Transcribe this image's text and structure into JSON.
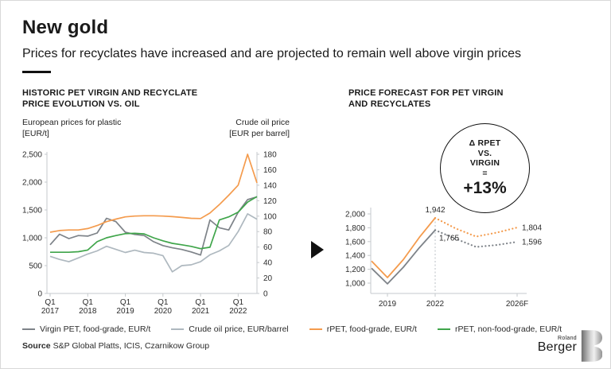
{
  "header": {
    "title": "New gold",
    "subtitle": "Prices for recyclates have increased and are projected to remain well above virgin prices"
  },
  "left_panel": {
    "heading_line1": "HISTORIC PET VIRGIN AND RECYCLATE",
    "heading_line2": "PRICE EVOLUTION VS. OIL",
    "left_axis_title_line1": "European prices for plastic",
    "left_axis_title_line2": "[EUR/t]",
    "right_axis_title_line1": "Crude oil price",
    "right_axis_title_line2": "[EUR per barrel]"
  },
  "right_panel": {
    "heading_line1": "PRICE FORECAST FOR PET VIRGIN",
    "heading_line2": "AND RECYCLATES",
    "badge": {
      "line1": "Δ RPET",
      "line2": "VS.",
      "line3": "VIRGIN",
      "line4": "=",
      "value": "+13%"
    }
  },
  "legend": [
    {
      "id": "virgin-pet",
      "label": "Virgin PET, food-grade, EUR/t",
      "color": "#7E8389"
    },
    {
      "id": "crude-oil",
      "label": "Crude oil price, EUR/barrel",
      "color": "#AEB8BF"
    },
    {
      "id": "rpet-food",
      "label": "rPET, food-grade, EUR/t",
      "color": "#F49B4D"
    },
    {
      "id": "rpet-nonfood",
      "label": "rPET, non-food-grade, EUR/t",
      "color": "#3FA54A"
    }
  ],
  "source": {
    "label": "Source",
    "text": "S&P Global Platts, ICIS, Czarnikow Group"
  },
  "logo": {
    "top": "Roland",
    "bottom": "Berger"
  },
  "chart_data": [
    {
      "type": "line",
      "title": "HISTORIC PET VIRGIN AND RECYCLATE PRICE EVOLUTION VS. OIL",
      "x": [
        "2017Q1",
        "2017Q2",
        "2017Q3",
        "2017Q4",
        "2018Q1",
        "2018Q2",
        "2018Q3",
        "2018Q4",
        "2019Q1",
        "2019Q2",
        "2019Q3",
        "2019Q4",
        "2020Q1",
        "2020Q2",
        "2020Q3",
        "2020Q4",
        "2021Q1",
        "2021Q2",
        "2021Q3",
        "2021Q4",
        "2022Q1",
        "2022Q2",
        "2022Q3"
      ],
      "quarter_tick_label": "Q1",
      "year_ticks": [
        "2017",
        "2018",
        "2019",
        "2020",
        "2021",
        "2022"
      ],
      "left_axis": {
        "label": "European prices for plastic [EUR/t]",
        "range": [
          0,
          2500
        ],
        "ticks": [
          0,
          500,
          1000,
          1500,
          2000,
          2500
        ]
      },
      "right_axis": {
        "label": "Crude oil price [EUR per barrel]",
        "range": [
          0,
          180
        ],
        "ticks": [
          0,
          20,
          40,
          60,
          80,
          100,
          120,
          140,
          160,
          180
        ]
      },
      "grid": false,
      "series": [
        {
          "id": "virgin-pet",
          "name": "Virgin PET, food-grade, EUR/t",
          "axis": "left",
          "color": "#7E8389",
          "values": [
            875,
            1065,
            985,
            1040,
            1030,
            1085,
            1350,
            1290,
            1100,
            1060,
            1040,
            930,
            860,
            820,
            790,
            745,
            690,
            1320,
            1180,
            1140,
            1460,
            1685,
            1735
          ]
        },
        {
          "id": "crude-oil",
          "name": "Crude oil price, EUR/barrel",
          "axis": "right",
          "color": "#AEB8BF",
          "values": [
            48,
            44,
            41,
            46,
            51,
            55,
            61,
            57,
            53,
            56,
            53,
            52,
            49,
            28,
            36,
            37,
            41,
            50,
            55,
            62,
            80,
            103,
            96
          ]
        },
        {
          "id": "rpet-food",
          "name": "rPET, food-grade, EUR/t",
          "axis": "left",
          "color": "#F49B4D",
          "values": [
            1100,
            1130,
            1140,
            1140,
            1165,
            1220,
            1290,
            1335,
            1375,
            1390,
            1395,
            1395,
            1390,
            1380,
            1365,
            1350,
            1345,
            1445,
            1595,
            1765,
            1945,
            2500,
            1985
          ]
        },
        {
          "id": "rpet-nonfood",
          "name": "rPET, non-food-grade, EUR/t",
          "axis": "left",
          "color": "#3FA54A",
          "values": [
            740,
            740,
            740,
            750,
            780,
            930,
            1000,
            1040,
            1075,
            1080,
            1070,
            1000,
            945,
            900,
            875,
            845,
            805,
            830,
            1320,
            1375,
            1460,
            1640,
            1740
          ]
        }
      ]
    },
    {
      "type": "line",
      "title": "PRICE FORECAST FOR PET VIRGIN AND RECYCLATES",
      "x": [
        2018,
        2019,
        2020,
        2021,
        2022,
        2023,
        2024,
        2025,
        2026
      ],
      "x_ticks": [
        {
          "x": 2019,
          "label": "2019"
        },
        {
          "x": 2022,
          "label": "2022"
        },
        {
          "x": 2026,
          "label": "2026F"
        }
      ],
      "y_ticks": [
        1000,
        1200,
        1400,
        1600,
        1800,
        2000
      ],
      "y_range": [
        850,
        2100
      ],
      "forecast_from": 2022,
      "grid": false,
      "series": [
        {
          "id": "rpet",
          "name": "rPET, food-grade, EUR/t",
          "color": "#F49B4D",
          "values": [
            1320,
            1080,
            1340,
            1660,
            1942,
            1790,
            1672,
            1730,
            1804
          ]
        },
        {
          "id": "virgin",
          "name": "Virgin PET, food-grade, EUR/t",
          "color": "#7E8389",
          "values": [
            1215,
            990,
            1230,
            1510,
            1765,
            1640,
            1523,
            1550,
            1596
          ]
        }
      ],
      "annotations": {
        "peak_rpet": "1,942",
        "peak_virgin": "1,765",
        "end_rpet": "1,804",
        "end_virgin": "1,596",
        "delta_rpet_vs_virgin": "+13%"
      }
    }
  ]
}
